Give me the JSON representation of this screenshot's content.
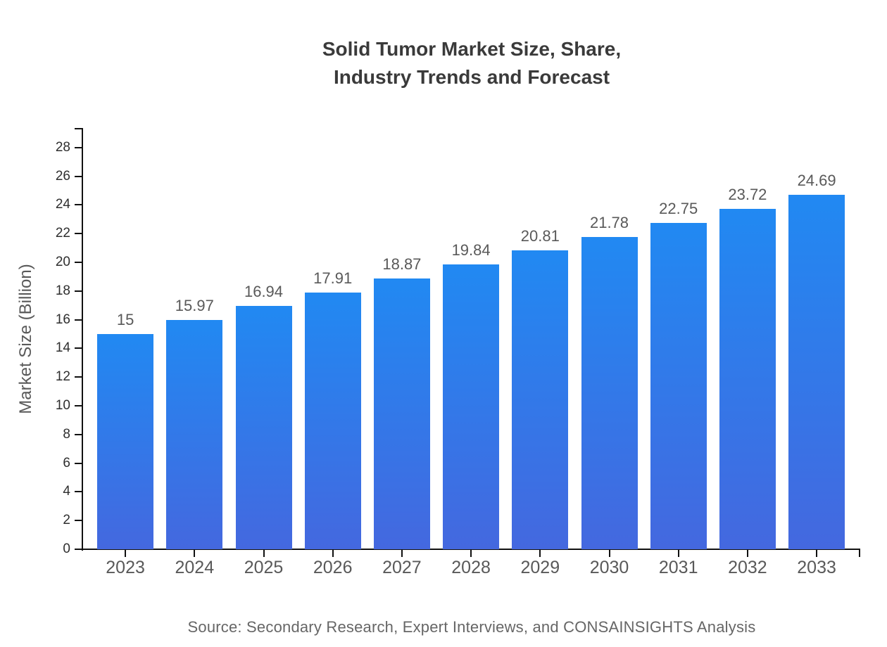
{
  "title": {
    "line1": "Solid Tumor Market Size, Share,",
    "line2": "Industry Trends and Forecast"
  },
  "y_axis_label": "Market Size (Billion)",
  "source_note": "Source: Secondary Research, Expert Interviews, and CONSAINSIGHTS Analysis",
  "chart_data": {
    "type": "bar",
    "title": "Solid Tumor Market Size, Share, Industry Trends and Forecast",
    "categories": [
      "2023",
      "2024",
      "2025",
      "2026",
      "2027",
      "2028",
      "2029",
      "2030",
      "2031",
      "2032",
      "2033"
    ],
    "values": [
      15,
      15.97,
      16.94,
      17.91,
      18.87,
      19.84,
      20.81,
      21.78,
      22.75,
      23.72,
      24.69
    ],
    "value_labels": [
      "15",
      "15.97",
      "16.94",
      "17.91",
      "18.87",
      "19.84",
      "20.81",
      "21.78",
      "22.75",
      "23.72",
      "24.69"
    ],
    "xlabel": "",
    "ylabel": "Market Size (Billion)",
    "ylim": [
      0,
      29.4
    ],
    "yticks": [
      0,
      2,
      4,
      6,
      8,
      10,
      12,
      14,
      16,
      18,
      20,
      22,
      24,
      26,
      28
    ],
    "grid": false,
    "legend": "none",
    "colors": {
      "bar_gradient_top": "#2189f2",
      "bar_gradient_bottom": "#4468df",
      "axis": "#111111",
      "y_tick_label": "#2e2e2e",
      "category_label": "#595959",
      "value_label": "#595959",
      "title": "#3a3a3a",
      "source": "#666666"
    }
  }
}
